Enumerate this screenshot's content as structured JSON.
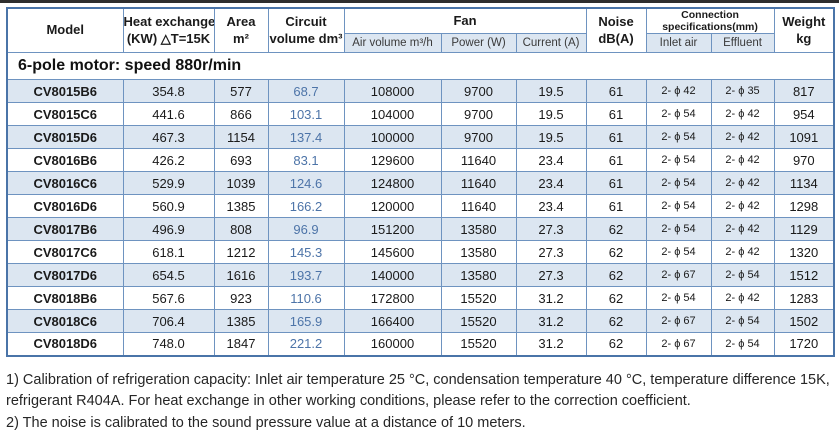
{
  "colors": {
    "row_fill": "#dce6f1",
    "inner_border": "#6e93c0",
    "outer_border": "#4a74a8",
    "circuit_value_text": "#4d74a8"
  },
  "table": {
    "header": {
      "model": "Model",
      "heat_exchange_line1": "Heat exchange",
      "heat_exchange_line2": "(KW) △T=15K",
      "area_line1": "Area",
      "area_line2": "m²",
      "circuit_line1": "Circuit",
      "circuit_line2": "volume dm³",
      "fan": "Fan",
      "air_volume": "Air volume m³/h",
      "power": "Power (W)",
      "current": "Current (A)",
      "noise_line1": "Noise",
      "noise_line2": "dB(A)",
      "connection_line1": "Connection",
      "connection_line2": "specifications(mm)",
      "inlet_air": "Inlet air",
      "effluent": "Effluent",
      "weight_line1": "Weight",
      "weight_line2": "kg"
    },
    "section_title": "6-pole motor: speed 880r/min",
    "rows": [
      {
        "model": "CV8015B6",
        "heat_exchange": "354.8",
        "area": "577",
        "circuit_volume": "68.7",
        "air_volume": "108000",
        "power": "9700",
        "current": "19.5",
        "noise": "61",
        "inlet_air": "2- ϕ 42",
        "effluent": "2- ϕ 35",
        "weight": "817"
      },
      {
        "model": "CV8015C6",
        "heat_exchange": "441.6",
        "area": "866",
        "circuit_volume": "103.1",
        "air_volume": "104000",
        "power": "9700",
        "current": "19.5",
        "noise": "61",
        "inlet_air": "2- ϕ 54",
        "effluent": "2- ϕ 42",
        "weight": "954"
      },
      {
        "model": "CV8015D6",
        "heat_exchange": "467.3",
        "area": "1154",
        "circuit_volume": "137.4",
        "air_volume": "100000",
        "power": "9700",
        "current": "19.5",
        "noise": "61",
        "inlet_air": "2- ϕ 54",
        "effluent": "2- ϕ 42",
        "weight": "1091"
      },
      {
        "model": "CV8016B6",
        "heat_exchange": "426.2",
        "area": "693",
        "circuit_volume": "83.1",
        "air_volume": "129600",
        "power": "11640",
        "current": "23.4",
        "noise": "61",
        "inlet_air": "2- ϕ 54",
        "effluent": "2- ϕ 42",
        "weight": "970"
      },
      {
        "model": "CV8016C6",
        "heat_exchange": "529.9",
        "area": "1039",
        "circuit_volume": "124.6",
        "air_volume": "124800",
        "power": "11640",
        "current": "23.4",
        "noise": "61",
        "inlet_air": "2- ϕ 54",
        "effluent": "2- ϕ 42",
        "weight": "1134"
      },
      {
        "model": "CV8016D6",
        "heat_exchange": "560.9",
        "area": "1385",
        "circuit_volume": "166.2",
        "air_volume": "120000",
        "power": "11640",
        "current": "23.4",
        "noise": "61",
        "inlet_air": "2- ϕ 54",
        "effluent": "2- ϕ 42",
        "weight": "1298"
      },
      {
        "model": "CV8017B6",
        "heat_exchange": "496.9",
        "area": "808",
        "circuit_volume": "96.9",
        "air_volume": "151200",
        "power": "13580",
        "current": "27.3",
        "noise": "62",
        "inlet_air": "2- ϕ 54",
        "effluent": "2- ϕ 42",
        "weight": "1129"
      },
      {
        "model": "CV8017C6",
        "heat_exchange": "618.1",
        "area": "1212",
        "circuit_volume": "145.3",
        "air_volume": "145600",
        "power": "13580",
        "current": "27.3",
        "noise": "62",
        "inlet_air": "2- ϕ 54",
        "effluent": "2- ϕ 42",
        "weight": "1320"
      },
      {
        "model": "CV8017D6",
        "heat_exchange": "654.5",
        "area": "1616",
        "circuit_volume": "193.7",
        "air_volume": "140000",
        "power": "13580",
        "current": "27.3",
        "noise": "62",
        "inlet_air": "2- ϕ 67",
        "effluent": "2- ϕ 54",
        "weight": "1512"
      },
      {
        "model": "CV8018B6",
        "heat_exchange": "567.6",
        "area": "923",
        "circuit_volume": "110.6",
        "air_volume": "172800",
        "power": "15520",
        "current": "31.2",
        "noise": "62",
        "inlet_air": "2- ϕ 54",
        "effluent": "2- ϕ 42",
        "weight": "1283"
      },
      {
        "model": "CV8018C6",
        "heat_exchange": "706.4",
        "area": "1385",
        "circuit_volume": "165.9",
        "air_volume": "166400",
        "power": "15520",
        "current": "31.2",
        "noise": "62",
        "inlet_air": "2- ϕ 67",
        "effluent": "2- ϕ 54",
        "weight": "1502"
      },
      {
        "model": "CV8018D6",
        "heat_exchange": "748.0",
        "area": "1847",
        "circuit_volume": "221.2",
        "air_volume": "160000",
        "power": "15520",
        "current": "31.2",
        "noise": "62",
        "inlet_air": "2- ϕ 67",
        "effluent": "2- ϕ 54",
        "weight": "1720"
      }
    ]
  },
  "notes": [
    "1) Calibration of refrigeration capacity: Inlet air temperature 25 °C, condensation temperature 40 °C, temperature difference 15K, refrigerant R404A. For heat exchange in other working conditions, please refer to the correction coefficient.",
    "2) The noise is calibrated to the sound pressure value at a distance of 10 meters."
  ]
}
